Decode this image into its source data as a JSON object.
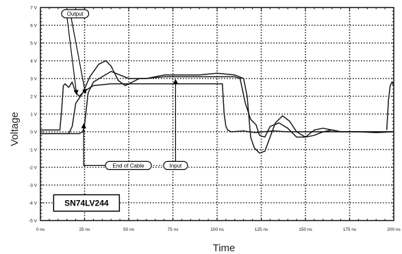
{
  "chart_data": {
    "type": "line",
    "title": "",
    "xlabel": "Time",
    "ylabel": "Voltage",
    "xlim": [
      0,
      200
    ],
    "ylim": [
      -5,
      7
    ],
    "grid": true,
    "x_ticks": [
      {
        "value": 0,
        "label": "0 ns"
      },
      {
        "value": 25,
        "label": "25 ns"
      },
      {
        "value": 50,
        "label": "50 ns"
      },
      {
        "value": 75,
        "label": "75 ns"
      },
      {
        "value": 100,
        "label": "100 ns"
      },
      {
        "value": 125,
        "label": "125 ns"
      },
      {
        "value": 150,
        "label": "150 ns"
      },
      {
        "value": 175,
        "label": "175 ns"
      },
      {
        "value": 200,
        "label": "200 ns"
      }
    ],
    "y_ticks": [
      {
        "value": 7,
        "label": "7 V"
      },
      {
        "value": 6,
        "label": "6 V"
      },
      {
        "value": 5,
        "label": "5 V"
      },
      {
        "value": 4,
        "label": "4 V"
      },
      {
        "value": 3,
        "label": "3 V"
      },
      {
        "value": 2,
        "label": "2 V"
      },
      {
        "value": 1,
        "label": "1 V"
      },
      {
        "value": 0,
        "label": "0 V"
      },
      {
        "value": -1,
        "label": "-1 V"
      },
      {
        "value": -2,
        "label": "-2 V"
      },
      {
        "value": -3,
        "label": "-3 V"
      },
      {
        "value": -4,
        "label": "-4 V"
      },
      {
        "value": -5,
        "label": "-5 V"
      }
    ],
    "series": [
      {
        "x": [
          0,
          11,
          12,
          13,
          14,
          16,
          18,
          20,
          22,
          25,
          30,
          40,
          60,
          80,
          100,
          103,
          104,
          105,
          106,
          108,
          115,
          118,
          122,
          126,
          132,
          140,
          160,
          180,
          200
        ],
        "y": [
          0.1,
          0.1,
          1.2,
          2.6,
          2.7,
          2.5,
          2.8,
          2.2,
          2.0,
          2.3,
          2.6,
          2.7,
          2.7,
          2.7,
          2.7,
          2.7,
          1.0,
          0.3,
          0.1,
          0.0,
          0.05,
          0.0,
          -0.05,
          0.0,
          0.05,
          0.0,
          0.0,
          0.0,
          0.0
        ]
      },
      {
        "x": [
          0,
          16,
          18,
          20,
          24,
          28,
          33,
          37,
          40,
          44,
          48,
          52,
          56,
          60,
          70,
          80,
          90,
          100,
          110,
          113,
          116,
          119,
          122,
          124,
          127,
          130,
          135,
          140,
          145,
          150,
          155,
          160,
          165,
          170,
          180,
          190,
          200
        ],
        "y": [
          -0.1,
          -0.1,
          0.3,
          1.6,
          2.2,
          3.1,
          3.8,
          4.0,
          3.7,
          2.9,
          2.6,
          2.8,
          3.0,
          3.0,
          3.1,
          3.1,
          3.1,
          3.1,
          3.1,
          3.0,
          1.6,
          0.7,
          0.4,
          -0.2,
          -0.3,
          0.3,
          0.5,
          0.2,
          -0.3,
          -0.3,
          0.1,
          0.2,
          0.1,
          0.0,
          0.0,
          -0.05,
          0.0
        ]
      },
      {
        "x": [
          0,
          22,
          24,
          25,
          27,
          30,
          35,
          40,
          45,
          50,
          60,
          70,
          80,
          90,
          100,
          110,
          115,
          117,
          119,
          121,
          124,
          127,
          130,
          133,
          137,
          141,
          145,
          150,
          155,
          160,
          165,
          170,
          180,
          200
        ],
        "y": [
          -0.1,
          -0.1,
          0.0,
          0.4,
          2.2,
          2.8,
          3.1,
          3.4,
          3.2,
          3.0,
          3.0,
          3.2,
          3.2,
          3.2,
          3.3,
          3.2,
          3.0,
          2.0,
          -0.3,
          -0.9,
          -1.2,
          -1.1,
          -0.3,
          0.5,
          0.9,
          0.6,
          0.0,
          -0.3,
          -0.2,
          0.0,
          0.1,
          0.0,
          0.0,
          0.0
        ]
      }
    ],
    "tail_step": {
      "x": [
        196,
        197,
        198,
        199,
        200
      ],
      "y": [
        0.1,
        1.8,
        2.6,
        2.8,
        2.6
      ]
    },
    "annotations": [
      {
        "text": "Output",
        "anchor": {
          "x": 12,
          "y": 6.65
        },
        "targets": [
          {
            "x": 20.5,
            "y": 2.1
          },
          {
            "x": 25.5,
            "y": 2.15
          }
        ]
      },
      {
        "text": "End of Cable",
        "anchor": {
          "x": 36,
          "y": -1.9
        },
        "targets": [
          {
            "x": 24.5,
            "y": 0.45
          }
        ]
      },
      {
        "text": "Input",
        "anchor": {
          "x": 76.5,
          "y": -1.9
        },
        "targets": [
          {
            "x": 76.5,
            "y": 2.95
          }
        ]
      }
    ],
    "label_box": {
      "text": "SN74LV244"
    }
  }
}
